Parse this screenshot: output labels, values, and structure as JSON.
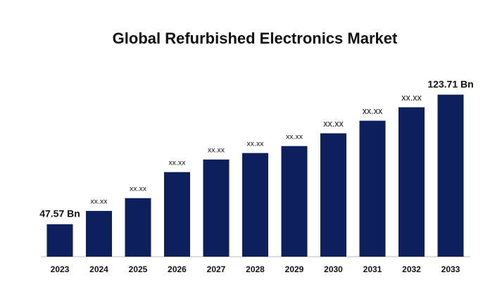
{
  "chart_data": {
    "type": "bar",
    "title": "Global Refurbished Electronics Market",
    "categories": [
      "2023",
      "2024",
      "2025",
      "2026",
      "2027",
      "2028",
      "2029",
      "2030",
      "2031",
      "2032",
      "2033"
    ],
    "values": [
      47.57,
      55.4,
      62.9,
      78.2,
      85.6,
      89.4,
      93.5,
      101,
      108.4,
      116.3,
      123.71
    ],
    "value_labels": [
      "47.57 Bn",
      "xx.xx",
      "xx.xx",
      "xx.xx",
      "xx.xx",
      "xx.xx",
      "xx.xx",
      "xx.xx",
      "xx.xx",
      "xx.xx",
      "123.71 Bn"
    ],
    "color": "#0d1f5c",
    "ylim": [
      28.5,
      128.5
    ]
  }
}
